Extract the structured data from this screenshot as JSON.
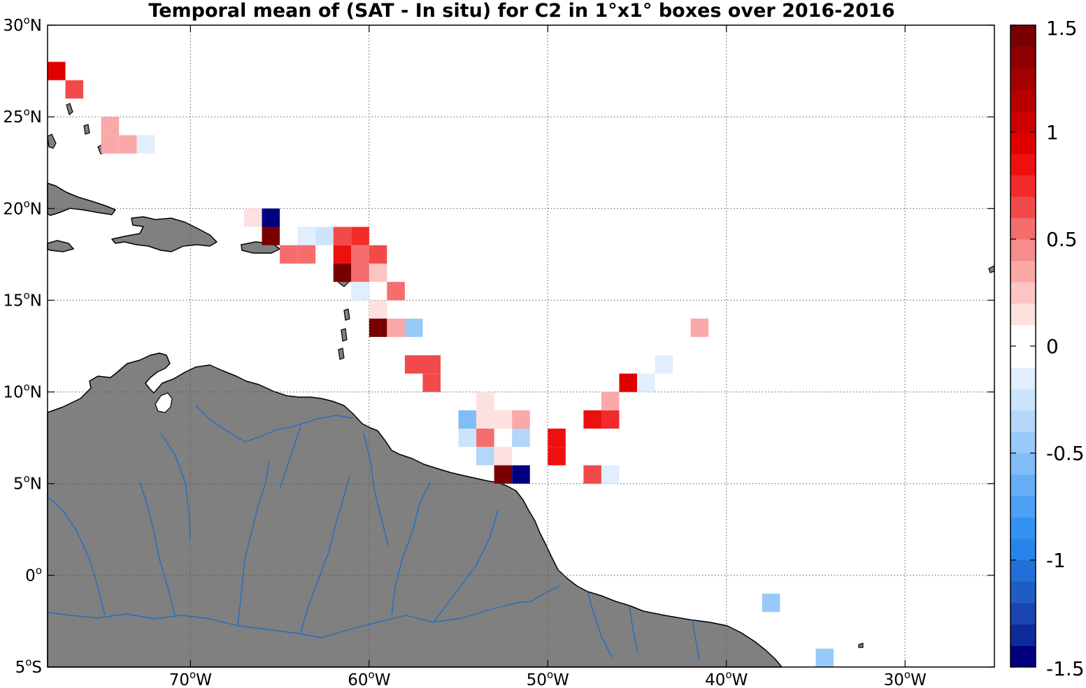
{
  "title": "Temporal mean of (SAT - In situ) for C2 in 1°x1° boxes over 2016-2016",
  "axes": {
    "lon_range": [
      -78,
      -25
    ],
    "lat_range": [
      -5,
      30
    ],
    "x_ticks": [
      {
        "value": -70,
        "label": "70",
        "suffix": "W"
      },
      {
        "value": -60,
        "label": "60",
        "suffix": "W"
      },
      {
        "value": -50,
        "label": "50",
        "suffix": "W"
      },
      {
        "value": -40,
        "label": "40",
        "suffix": "W"
      },
      {
        "value": -30,
        "label": "30",
        "suffix": "W"
      }
    ],
    "y_ticks": [
      {
        "value": 30,
        "label": "30",
        "suffix": "N"
      },
      {
        "value": 25,
        "label": "25",
        "suffix": "N"
      },
      {
        "value": 20,
        "label": "20",
        "suffix": "N"
      },
      {
        "value": 15,
        "label": "15",
        "suffix": "N"
      },
      {
        "value": 10,
        "label": "10",
        "suffix": "N"
      },
      {
        "value": 5,
        "label": "5",
        "suffix": "N"
      },
      {
        "value": 0,
        "label": "0",
        "suffix": ""
      },
      {
        "value": -5,
        "label": "5",
        "suffix": "S"
      }
    ],
    "degree_symbol": "o",
    "grid": "dotted"
  },
  "colorbar": {
    "min": -1.5,
    "max": 1.5,
    "ticks": [
      {
        "value": 1.5,
        "label": "1.5"
      },
      {
        "value": 1,
        "label": "1"
      },
      {
        "value": 0.5,
        "label": "0.5"
      },
      {
        "value": 0,
        "label": "0"
      },
      {
        "value": -0.5,
        "label": "-0.5"
      },
      {
        "value": -1,
        "label": "-1"
      },
      {
        "value": -1.5,
        "label": "-1.5"
      }
    ],
    "levels": 30,
    "negative_colors": [
      "#000080",
      "#0f2b99",
      "#1a45b0",
      "#1f5cc4",
      "#2070d8",
      "#2684ec",
      "#3391f2",
      "#4da0f3",
      "#66aef5",
      "#80bcf6",
      "#99c9f8",
      "#b3d6fa",
      "#cce4fb",
      "#e0eefd",
      "#ffffff"
    ],
    "positive_colors": [
      "#ffffff",
      "#fde0e0",
      "#fcc4c4",
      "#faa8a8",
      "#f78c8c",
      "#f56d6d",
      "#f24a4a",
      "#f22a2a",
      "#ee0f0f",
      "#e00000",
      "#cc0000",
      "#b80000",
      "#a30000",
      "#8e0000",
      "#780000"
    ]
  },
  "colors": {
    "land": "#808080",
    "coastline": "#000000",
    "rivers": "#1f6fc4",
    "ocean": "#ffffff"
  },
  "chart_data": {
    "type": "heatmap",
    "units": "SAT - In situ",
    "cells": [
      {
        "lon": -78,
        "lat": 27,
        "value": 0.95
      },
      {
        "lon": -77,
        "lat": 26,
        "value": 0.6
      },
      {
        "lon": -75,
        "lat": 24,
        "value": 0.3
      },
      {
        "lon": -75,
        "lat": 23,
        "value": 0.3
      },
      {
        "lon": -74,
        "lat": 23,
        "value": 0.3
      },
      {
        "lon": -73,
        "lat": 23,
        "value": -0.2
      },
      {
        "lon": -67,
        "lat": 19,
        "value": 0.15
      },
      {
        "lon": -66,
        "lat": 19,
        "value": -1.5
      },
      {
        "lon": -66,
        "lat": 18,
        "value": 1.45
      },
      {
        "lon": -64,
        "lat": 18,
        "value": -0.1
      },
      {
        "lon": -63,
        "lat": 18,
        "value": -0.25
      },
      {
        "lon": -65,
        "lat": 17,
        "value": 0.55
      },
      {
        "lon": -64,
        "lat": 17,
        "value": 0.55
      },
      {
        "lon": -62,
        "lat": 18,
        "value": 0.6
      },
      {
        "lon": -61,
        "lat": 18,
        "value": 0.7
      },
      {
        "lon": -62,
        "lat": 17,
        "value": 0.9
      },
      {
        "lon": -61,
        "lat": 17,
        "value": 0.5
      },
      {
        "lon": -60,
        "lat": 17,
        "value": 0.6
      },
      {
        "lon": -62,
        "lat": 16,
        "value": 1.4
      },
      {
        "lon": -61,
        "lat": 16,
        "value": 0.5
      },
      {
        "lon": -60,
        "lat": 16,
        "value": 0.25
      },
      {
        "lon": -61,
        "lat": 15,
        "value": -0.1
      },
      {
        "lon": -59,
        "lat": 15,
        "value": 0.5
      },
      {
        "lon": -60,
        "lat": 14,
        "value": 0.15
      },
      {
        "lon": -60,
        "lat": 13,
        "value": 1.45
      },
      {
        "lon": -59,
        "lat": 13,
        "value": 0.3
      },
      {
        "lon": -58,
        "lat": 13,
        "value": -0.45
      },
      {
        "lon": -58,
        "lat": 11,
        "value": 0.65
      },
      {
        "lon": -57,
        "lat": 11,
        "value": 0.65
      },
      {
        "lon": -57,
        "lat": 10,
        "value": 0.6
      },
      {
        "lon": -54,
        "lat": 9,
        "value": 0.15
      },
      {
        "lon": -55,
        "lat": 8,
        "value": -0.55
      },
      {
        "lon": -54,
        "lat": 8,
        "value": 0.15
      },
      {
        "lon": -53,
        "lat": 8,
        "value": 0.15
      },
      {
        "lon": -52,
        "lat": 8,
        "value": 0.35
      },
      {
        "lon": -55,
        "lat": 7,
        "value": -0.25
      },
      {
        "lon": -54,
        "lat": 7,
        "value": 0.5
      },
      {
        "lon": -52,
        "lat": 7,
        "value": -0.35
      },
      {
        "lon": -54,
        "lat": 6,
        "value": -0.35
      },
      {
        "lon": -53,
        "lat": 6,
        "value": 0.15
      },
      {
        "lon": -53,
        "lat": 5,
        "value": 1.45
      },
      {
        "lon": -52,
        "lat": 5,
        "value": -1.5
      },
      {
        "lon": -50,
        "lat": 7,
        "value": 0.8
      },
      {
        "lon": -50,
        "lat": 6,
        "value": 0.8
      },
      {
        "lon": -48,
        "lat": 8,
        "value": 0.85
      },
      {
        "lon": -47,
        "lat": 8,
        "value": 0.7
      },
      {
        "lon": -47,
        "lat": 9,
        "value": 0.35
      },
      {
        "lon": -48,
        "lat": 5,
        "value": 0.65
      },
      {
        "lon": -47,
        "lat": 5,
        "value": -0.1
      },
      {
        "lon": -46,
        "lat": 10,
        "value": 0.95
      },
      {
        "lon": -45,
        "lat": 10,
        "value": -0.1
      },
      {
        "lon": -44,
        "lat": 11,
        "value": -0.1
      },
      {
        "lon": -42,
        "lat": 13,
        "value": 0.35
      },
      {
        "lon": -38,
        "lat": -2,
        "value": -0.45
      },
      {
        "lon": -35,
        "lat": -5,
        "value": -0.45
      }
    ]
  }
}
